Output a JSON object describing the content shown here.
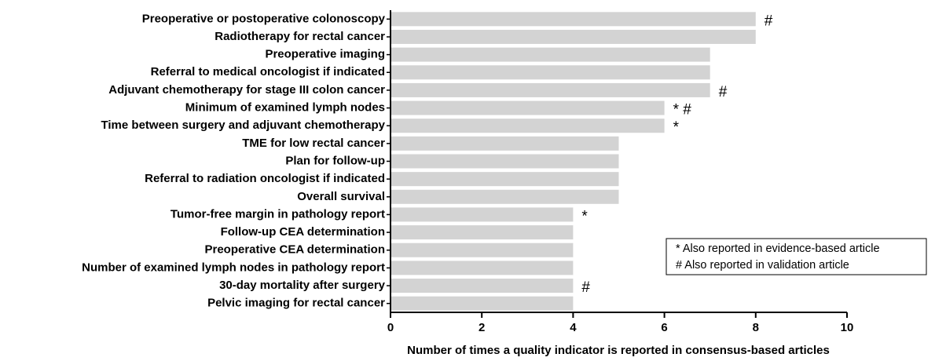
{
  "chart_data": {
    "type": "hbar",
    "xlabel": "Number of times a quality indicator is reported in consensus-based articles",
    "categories": [
      "Preoperative or postoperative colonoscopy",
      "Radiotherapy for rectal cancer",
      "Preoperative imaging",
      "Referral to medical oncologist if indicated",
      "Adjuvant chemotherapy for stage III colon cancer",
      "Minimum of examined lymph nodes",
      "Time between surgery and adjuvant chemotherapy",
      "TME for low rectal cancer",
      "Plan for follow-up",
      "Referral to radiation oncologist if indicated",
      "Overall survival",
      "Tumor-free margin in pathology report",
      "Follow-up CEA determination",
      "Preoperative CEA determination",
      "Number of examined lymph nodes in pathology report",
      "30-day mortality after surgery",
      "Pelvic imaging for rectal cancer"
    ],
    "values": [
      8,
      8,
      7,
      7,
      7,
      6,
      6,
      5,
      5,
      5,
      5,
      4,
      4,
      4,
      4,
      4,
      4
    ],
    "annotations": [
      "#",
      null,
      null,
      null,
      "#",
      "* #",
      "*",
      null,
      null,
      null,
      null,
      "*",
      null,
      null,
      null,
      "#",
      null
    ],
    "legend": [
      "* Also reported in evidence-based article",
      "# Also reported in validation article"
    ],
    "color": "#d3d3d3",
    "xlim": [
      0,
      10
    ],
    "xticks": [
      0,
      2,
      4,
      6,
      8,
      10
    ]
  }
}
